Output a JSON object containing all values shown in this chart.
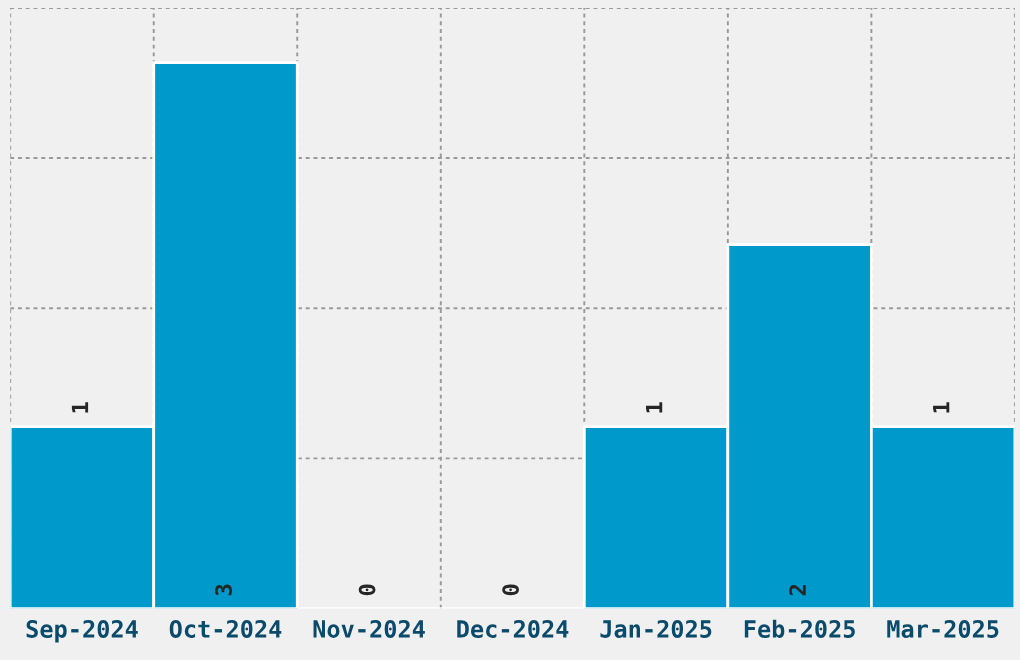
{
  "chart_data": {
    "type": "bar",
    "categories": [
      "Sep-2024",
      "Oct-2024",
      "Nov-2024",
      "Dec-2024",
      "Jan-2025",
      "Feb-2025",
      "Mar-2025"
    ],
    "values": [
      1,
      3,
      0,
      0,
      1,
      2,
      1
    ],
    "color": "#0099cc",
    "data_labels": true,
    "ylim": [
      0,
      3.3
    ],
    "yticks": [
      {
        "value": 0.825,
        "label": null
      },
      {
        "value": 1.65,
        "label": null
      },
      {
        "value": 2.475,
        "label": null
      },
      {
        "value": 3.3,
        "label": null
      }
    ],
    "tick_labels": "x",
    "grid": true
  }
}
